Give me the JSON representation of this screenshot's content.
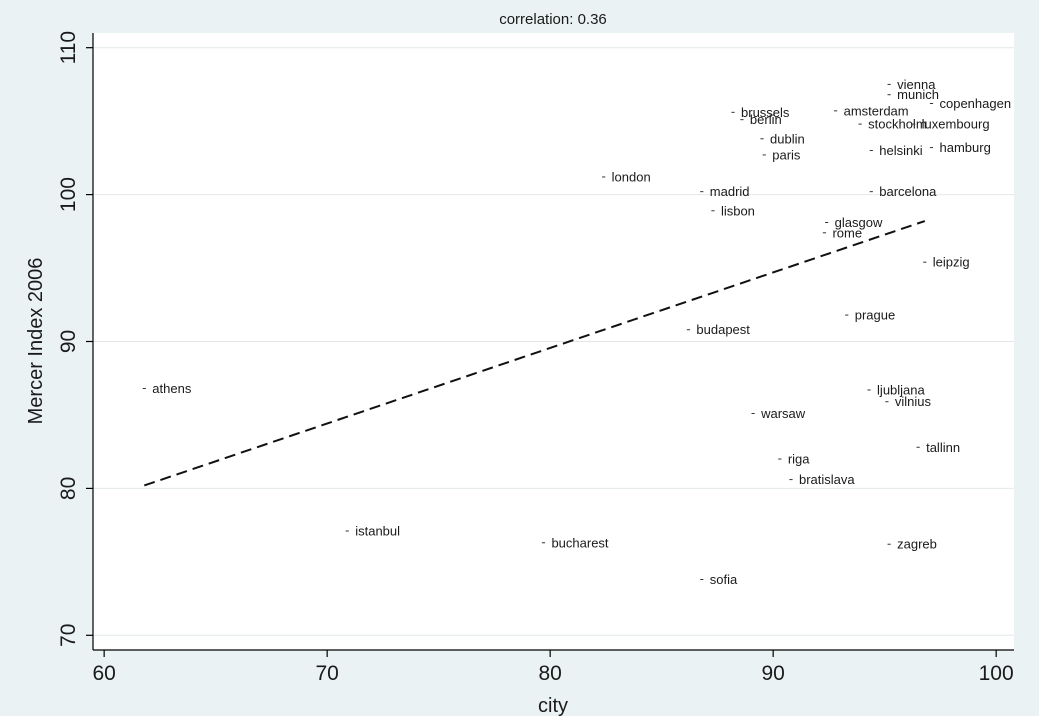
{
  "chart_data": {
    "type": "scatter",
    "title": "correlation: 0.36",
    "xlabel": "city",
    "ylabel": "Mercer Index 2006",
    "xlim": [
      59.5,
      100.8
    ],
    "ylim": [
      69.0,
      111.0
    ],
    "xticks": [
      "60",
      "70",
      "80",
      "90",
      "100"
    ],
    "yticks": [
      "70",
      "80",
      "90",
      "100",
      "110"
    ],
    "grid": "horizontal",
    "points": [
      {
        "label": "vienna",
        "x": 95.2,
        "y": 107.5
      },
      {
        "label": "munich",
        "x": 95.2,
        "y": 106.8
      },
      {
        "label": "copenhagen",
        "x": 97.1,
        "y": 106.2
      },
      {
        "label": "brussels",
        "x": 88.2,
        "y": 105.6
      },
      {
        "label": "berlin",
        "x": 88.6,
        "y": 105.1
      },
      {
        "label": "amsterdam",
        "x": 92.8,
        "y": 105.7
      },
      {
        "label": "stockholm",
        "x": 93.9,
        "y": 104.8
      },
      {
        "label": "luxembourg",
        "x": 96.3,
        "y": 104.8
      },
      {
        "label": "dublin",
        "x": 89.5,
        "y": 103.8
      },
      {
        "label": "paris",
        "x": 89.6,
        "y": 102.7
      },
      {
        "label": "helsinki",
        "x": 94.4,
        "y": 103.0
      },
      {
        "label": "hamburg",
        "x": 97.1,
        "y": 103.2
      },
      {
        "label": "london",
        "x": 82.4,
        "y": 101.2
      },
      {
        "label": "madrid",
        "x": 86.8,
        "y": 100.2
      },
      {
        "label": "barcelona",
        "x": 94.4,
        "y": 100.2
      },
      {
        "label": "lisbon",
        "x": 87.3,
        "y": 98.9
      },
      {
        "label": "glasgow",
        "x": 92.4,
        "y": 98.1
      },
      {
        "label": "rome",
        "x": 92.3,
        "y": 97.4
      },
      {
        "label": "leipzig",
        "x": 96.8,
        "y": 95.4
      },
      {
        "label": "prague",
        "x": 93.3,
        "y": 91.8
      },
      {
        "label": "budapest",
        "x": 86.2,
        "y": 90.8
      },
      {
        "label": "athens",
        "x": 61.8,
        "y": 86.8
      },
      {
        "label": "ljubljana",
        "x": 94.3,
        "y": 86.7
      },
      {
        "label": "vilnius",
        "x": 95.1,
        "y": 85.9
      },
      {
        "label": "warsaw",
        "x": 89.1,
        "y": 85.1
      },
      {
        "label": "tallinn",
        "x": 96.5,
        "y": 82.8
      },
      {
        "label": "riga",
        "x": 90.3,
        "y": 82.0
      },
      {
        "label": "bratislava",
        "x": 90.8,
        "y": 80.6
      },
      {
        "label": "istanbul",
        "x": 70.9,
        "y": 77.1
      },
      {
        "label": "bucharest",
        "x": 79.7,
        "y": 76.3
      },
      {
        "label": "zagreb",
        "x": 95.2,
        "y": 76.2
      },
      {
        "label": "sofia",
        "x": 86.8,
        "y": 73.8
      }
    ],
    "fit_line": {
      "style": "dashed",
      "x": [
        61.8,
        96.8
      ],
      "y": [
        80.2,
        98.2
      ]
    }
  }
}
